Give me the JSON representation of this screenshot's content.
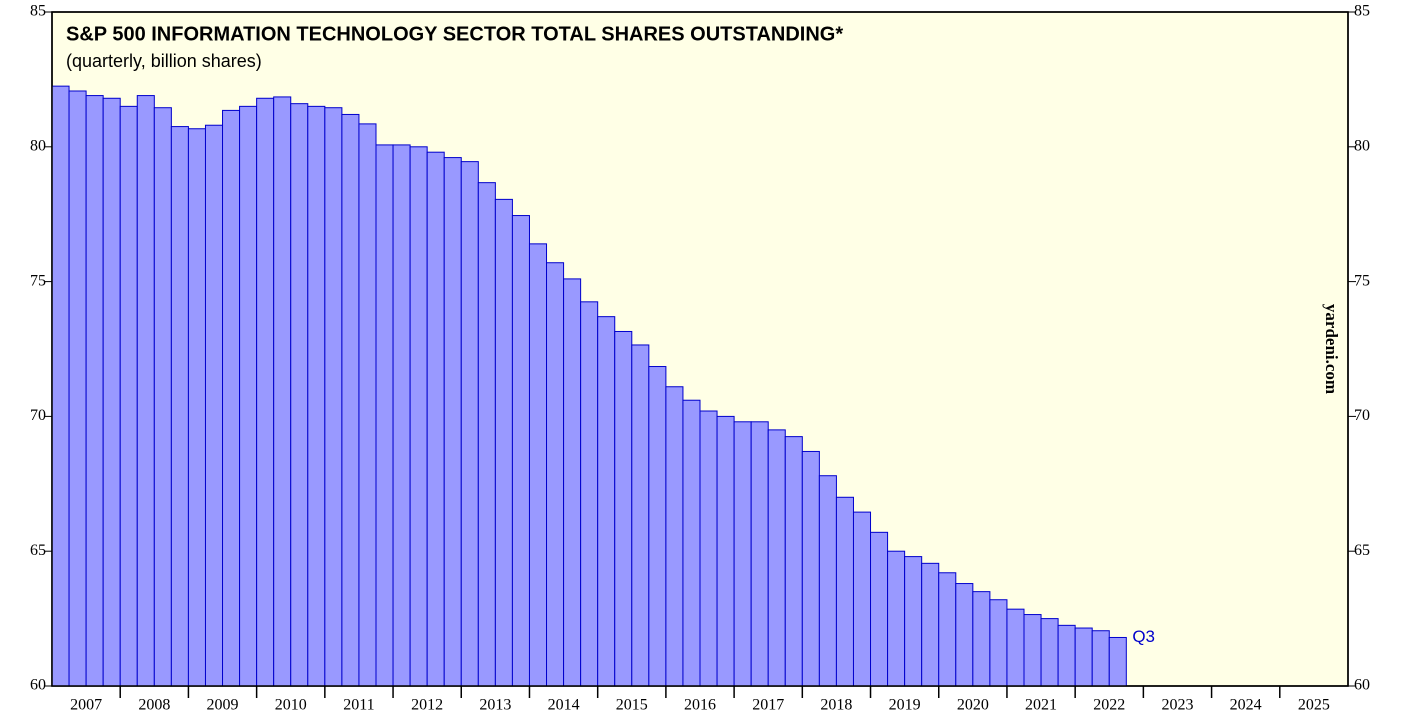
{
  "chart_data": {
    "type": "bar",
    "title": "S&P 500 INFORMATION TECHNOLOGY SECTOR TOTAL SHARES OUTSTANDING*",
    "subtitle": "(quarterly, billion shares)",
    "watermark": "yardeni.com",
    "annotation": "Q3",
    "year_labels": [
      "2007",
      "2008",
      "2009",
      "2010",
      "2011",
      "2012",
      "2013",
      "2014",
      "2015",
      "2016",
      "2017",
      "2018",
      "2019",
      "2020",
      "2021",
      "2022",
      "2023",
      "2024",
      "2025"
    ],
    "values": [
      82.25,
      82.07,
      81.9,
      81.8,
      81.5,
      81.9,
      81.45,
      80.75,
      80.67,
      80.8,
      81.35,
      81.5,
      81.8,
      81.85,
      81.6,
      81.5,
      81.45,
      81.2,
      80.85,
      80.07,
      80.07,
      80.0,
      79.8,
      79.6,
      79.45,
      78.67,
      78.05,
      77.45,
      76.4,
      75.7,
      75.1,
      74.25,
      73.7,
      73.15,
      72.65,
      71.85,
      71.1,
      70.6,
      70.2,
      70.0,
      69.8,
      69.8,
      69.5,
      69.25,
      68.7,
      67.8,
      67.0,
      66.45,
      65.7,
      65.0,
      64.8,
      64.55,
      64.2,
      63.8,
      63.5,
      63.2,
      62.85,
      62.65,
      62.5,
      62.25,
      62.15,
      62.05,
      61.8
    ],
    "color": "#9999ff",
    "edge_color": "#0000cc",
    "ylim": [
      60,
      85
    ],
    "yticks": [
      60,
      65,
      70,
      75,
      80,
      85
    ]
  }
}
